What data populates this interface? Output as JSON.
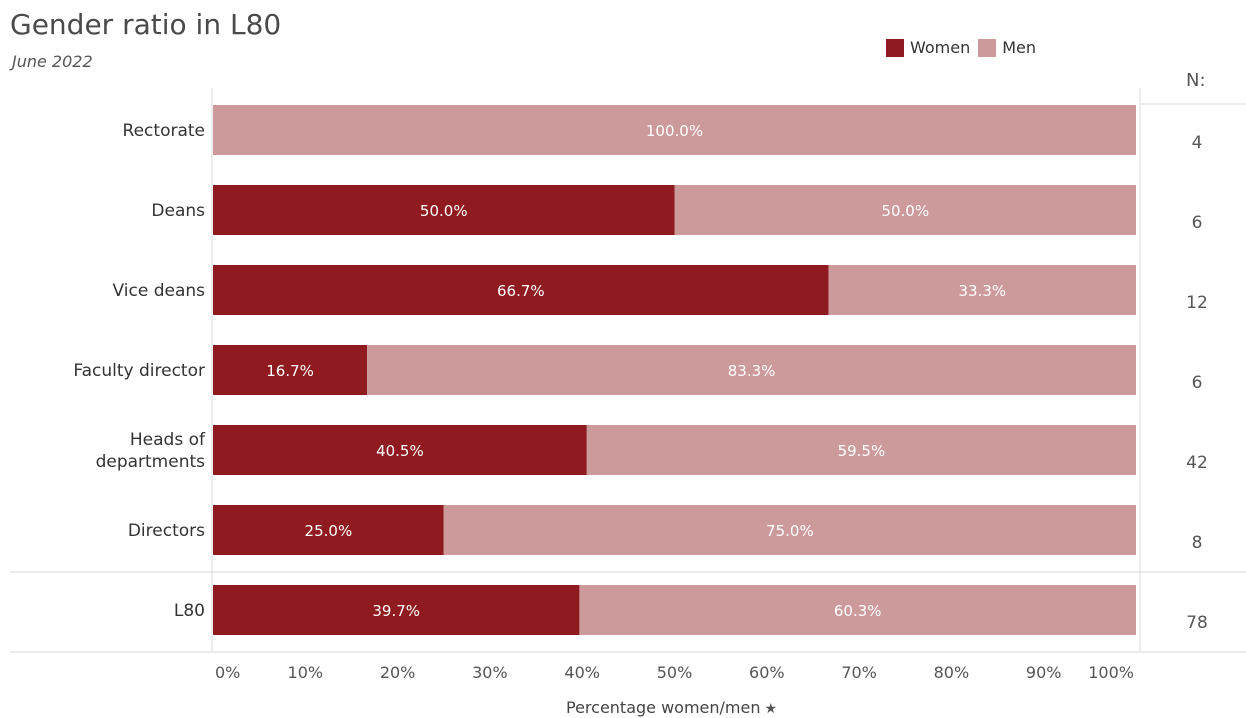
{
  "title": "Gender ratio in L80",
  "subtitle": "June 2022",
  "n_header": "N:",
  "colors": {
    "women": "#8f1a1f",
    "men": "#cd9a9b",
    "grid": "#d9d9d9",
    "text": "#333333"
  },
  "legend": {
    "women_label": "Women",
    "men_label": "Men"
  },
  "chart_data": {
    "type": "bar",
    "orientation": "horizontal",
    "stacked": true,
    "xlabel": "Percentage women/men",
    "xlim": [
      0,
      100
    ],
    "xticks": [
      "0%",
      "10%",
      "20%",
      "30%",
      "40%",
      "50%",
      "60%",
      "70%",
      "80%",
      "90%",
      "100%"
    ],
    "categories": [
      "Rectorate",
      "Deans",
      "Vice deans",
      "Faculty director",
      "Heads of\ndepartments",
      "Directors",
      "L80"
    ],
    "series": [
      {
        "name": "Women",
        "values": [
          0,
          50.0,
          66.7,
          16.7,
          40.5,
          25.0,
          39.7
        ],
        "labels": [
          "",
          "50.0%",
          "66.7%",
          "16.7%",
          "40.5%",
          "25.0%",
          "39.7%"
        ]
      },
      {
        "name": "Men",
        "values": [
          100.0,
          50.0,
          33.3,
          83.3,
          59.5,
          75.0,
          60.3
        ],
        "labels": [
          "100.0%",
          "50.0%",
          "33.3%",
          "83.3%",
          "59.5%",
          "75.0%",
          "60.3%"
        ]
      }
    ],
    "n_values": [
      "4",
      "6",
      "12",
      "6",
      "42",
      "8",
      "78"
    ],
    "grid": false,
    "legend_position": "top-right"
  }
}
